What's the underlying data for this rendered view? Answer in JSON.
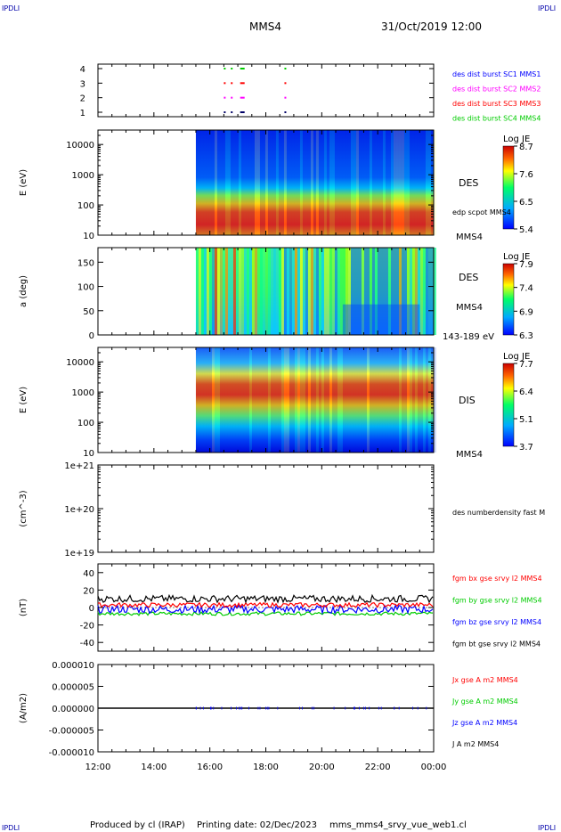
{
  "header": {
    "corner_left_top": "IPDLI",
    "corner_right_top": "IPDLI",
    "corner_left_bottom": "IPDLI",
    "corner_right_bottom": "IPDLI",
    "spacecraft": "MMS4",
    "datetime": "31/Oct/2019 12:00"
  },
  "footer": {
    "produced_by": "Produced by cl (IRAP)",
    "printing_date": "Printing date: 02/Dec/2023",
    "file": "mms_mms4_srvy_vue_web1.cl"
  },
  "x_axis": {
    "ticks": [
      "12:00",
      "14:00",
      "16:00",
      "18:00",
      "20:00",
      "22:00",
      "00:00"
    ]
  },
  "colors": {
    "blue": "#0000ff",
    "magenta": "#ff00ff",
    "red": "#ff0000",
    "green": "#00cc00",
    "black": "#000000"
  },
  "chart_data": [
    {
      "type": "scatter",
      "panel": "burst",
      "yticks": [
        "1",
        "2",
        "3",
        "4"
      ],
      "legend": [
        {
          "label": "des dist burst SC1 MMS1",
          "color": "#0000ff"
        },
        {
          "label": "des dist burst SC2 MMS2",
          "color": "#ff00ff"
        },
        {
          "label": "des dist burst SC3 MMS3",
          "color": "#ff0000"
        },
        {
          "label": "des dist burst SC4 MMS4",
          "color": "#00cc00"
        }
      ],
      "x": [
        "16:30",
        "16:45",
        "17:05",
        "18:40"
      ],
      "ylim": [
        1,
        4
      ]
    },
    {
      "type": "heatmap",
      "panel": "des_energy",
      "ylabel": "E (eV)",
      "yticks": [
        "10",
        "100",
        "1000",
        "10000"
      ],
      "ylim": [
        10,
        30000
      ],
      "data_start": "15:30",
      "label": "DES",
      "sublabel": "edp scpot MMS4",
      "sc_label": "MMS4",
      "colorbar": {
        "title": "Log JE",
        "ticks": [
          "8.7",
          "7.6",
          "6.5",
          "5.4"
        ],
        "range": [
          5.4,
          8.7
        ]
      }
    },
    {
      "type": "heatmap",
      "panel": "des_pitch",
      "ylabel": "a (deg)",
      "yticks": [
        "0",
        "50",
        "100",
        "150"
      ],
      "ylim": [
        0,
        180
      ],
      "data_start": "15:30",
      "label": "DES",
      "sc_label": "MMS4",
      "range_label": "143-189 eV",
      "colorbar": {
        "title": "Log JE",
        "ticks": [
          "7.9",
          "7.4",
          "6.9",
          "6.3"
        ],
        "range": [
          6.3,
          7.9
        ]
      }
    },
    {
      "type": "heatmap",
      "panel": "dis_energy",
      "ylabel": "E (eV)",
      "yticks": [
        "10",
        "100",
        "1000",
        "10000"
      ],
      "ylim": [
        10,
        30000
      ],
      "data_start": "15:30",
      "label": "DIS",
      "sc_label": "MMS4",
      "colorbar": {
        "title": "Log JE",
        "ticks": [
          "7.7",
          "6.4",
          "5.1",
          "3.7"
        ],
        "range": [
          3.7,
          7.7
        ]
      }
    },
    {
      "type": "line",
      "panel": "density",
      "ylabel": "(cm^-3)",
      "yticks": [
        "1e+19",
        "1e+20",
        "1e+21"
      ],
      "ylim": [
        1e+19,
        1e+21
      ],
      "legend": [
        {
          "label": "des numberdensity fast M",
          "color": "#000000"
        }
      ]
    },
    {
      "type": "line",
      "panel": "fgm",
      "ylabel": "(nT)",
      "yticks": [
        "-40",
        "-20",
        "0",
        "20",
        "40"
      ],
      "ylim": [
        -50,
        50
      ],
      "legend": [
        {
          "label": "fgm bx gse srvy l2 MMS4",
          "color": "#ff0000"
        },
        {
          "label": "fgm by gse srvy l2 MMS4",
          "color": "#00cc00"
        },
        {
          "label": "fgm bz gse srvy l2 MMS4",
          "color": "#0000ff"
        },
        {
          "label": "fgm bt gse srvy l2 MMS4",
          "color": "#000000"
        }
      ],
      "series": [
        {
          "name": "fgm bt gse srvy l2 MMS4",
          "approx_level": 10
        },
        {
          "name": "fgm bx gse srvy l2 MMS4",
          "approx_level": 3
        },
        {
          "name": "fgm by gse srvy l2 MMS4",
          "approx_level": -7
        },
        {
          "name": "fgm bz gse srvy l2 MMS4",
          "approx_level": -2
        }
      ]
    },
    {
      "type": "line",
      "panel": "current",
      "ylabel": "(A/m2)",
      "yticks": [
        "-0.000010",
        "-0.000005",
        "0.000000",
        "0.000005",
        "0.000010"
      ],
      "ylim": [
        -1e-05,
        1e-05
      ],
      "legend": [
        {
          "label": "Jx gse A m2 MMS4",
          "color": "#ff0000"
        },
        {
          "label": "Jy gse A m2 MMS4",
          "color": "#00cc00"
        },
        {
          "label": "Jz gse A m2 MMS4",
          "color": "#0000ff"
        },
        {
          "label": "J A m2 MMS4",
          "color": "#000000"
        }
      ]
    }
  ]
}
